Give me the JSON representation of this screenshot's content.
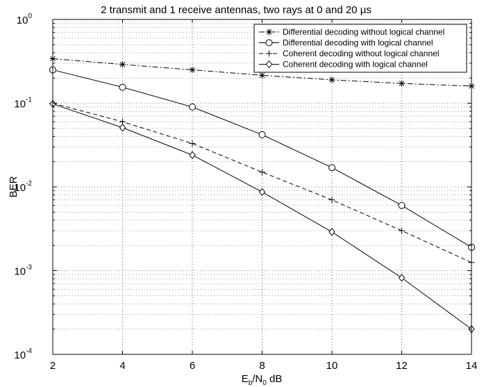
{
  "chart_data": {
    "type": "line",
    "title": "2 transmit and 1 receive antennas, two rays at 0 and 20",
    "title_unit": "µs",
    "xlabel": {
      "base": "E",
      "sub1": "b",
      "slash": "/N",
      "sub2": "0",
      "rest": " dB"
    },
    "ylabel": "BER",
    "x_ticks": [
      "2",
      "4",
      "6",
      "8",
      "10",
      "12",
      "14"
    ],
    "y_ticks": [
      {
        "base": "10",
        "exp": "0"
      },
      {
        "base": "10",
        "exp": "-1"
      },
      {
        "base": "10",
        "exp": "-2"
      },
      {
        "base": "10",
        "exp": "-3"
      },
      {
        "base": "10",
        "exp": "-4"
      }
    ],
    "xlim": [
      2,
      14
    ],
    "ylim": [
      0.0001,
      1
    ],
    "yscale": "log",
    "grid": true,
    "legend_position": "top-right",
    "x": [
      2,
      4,
      6,
      8,
      10,
      12,
      14
    ],
    "series": [
      {
        "name": "Differential decoding without logical channel",
        "marker": "asterisk",
        "dash": "dashdot",
        "values": [
          0.34,
          0.29,
          0.25,
          0.215,
          0.19,
          0.172,
          0.16
        ]
      },
      {
        "name": "Differential decoding with logical channel",
        "marker": "circle",
        "dash": "solid",
        "values": [
          0.25,
          0.155,
          0.09,
          0.042,
          0.017,
          0.006,
          0.0019
        ]
      },
      {
        "name": "Coherent decoding without logical channel",
        "marker": "plus",
        "dash": "dashed",
        "values": [
          0.1,
          0.06,
          0.033,
          0.015,
          0.007,
          0.003,
          0.00125
        ]
      },
      {
        "name": "Coherent decoding with logical channel",
        "marker": "diamond",
        "dash": "solid",
        "values": [
          0.098,
          0.051,
          0.024,
          0.0087,
          0.0029,
          0.00082,
          0.0002
        ]
      }
    ]
  }
}
